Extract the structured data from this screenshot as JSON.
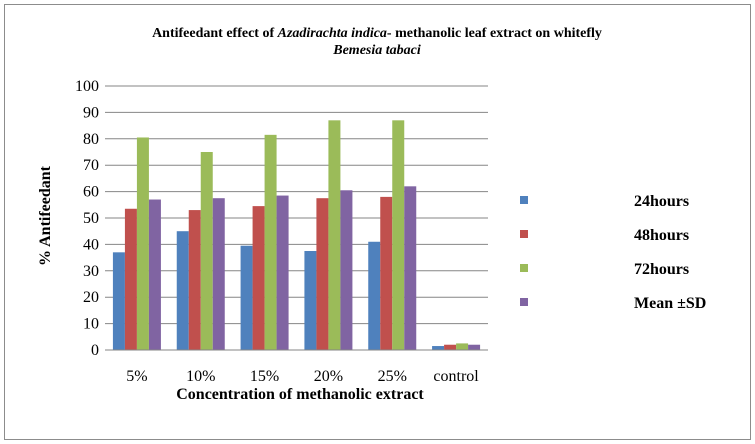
{
  "chart_data": {
    "type": "bar",
    "title_plain": "Antifeedant effect of ",
    "title_italic": "Azadirachta indica",
    "title_rest": "- methanolic leaf extract  on whitefly",
    "subtitle_italic": "Bemesia tabaci",
    "xlabel": "Concentration  of  methanolic  extract",
    "ylabel": "% Antifeedant",
    "ylim": [
      0,
      100
    ],
    "yticks": [
      "0",
      "10",
      "20",
      "30",
      "40",
      "50",
      "60",
      "70",
      "80",
      "90",
      "100"
    ],
    "grid": true,
    "legend_position": "right",
    "categories": [
      "5%",
      "10%",
      "15%",
      "20%",
      "25%",
      "control"
    ],
    "series": [
      {
        "name": "24hours",
        "color": "#4f81bd",
        "values": [
          37,
          45,
          39.5,
          37.5,
          41,
          1.5
        ]
      },
      {
        "name": "48hours",
        "color": "#c0504d",
        "values": [
          53.5,
          53,
          54.5,
          57.5,
          58,
          2
        ]
      },
      {
        "name": "72hours",
        "color": "#9bbb59",
        "values": [
          80.5,
          75,
          81.5,
          87,
          87,
          2.5
        ]
      },
      {
        "name": "Mean ±SD",
        "color": "#8064a2",
        "values": [
          57,
          57.5,
          58.5,
          60.5,
          62,
          2
        ]
      }
    ]
  }
}
